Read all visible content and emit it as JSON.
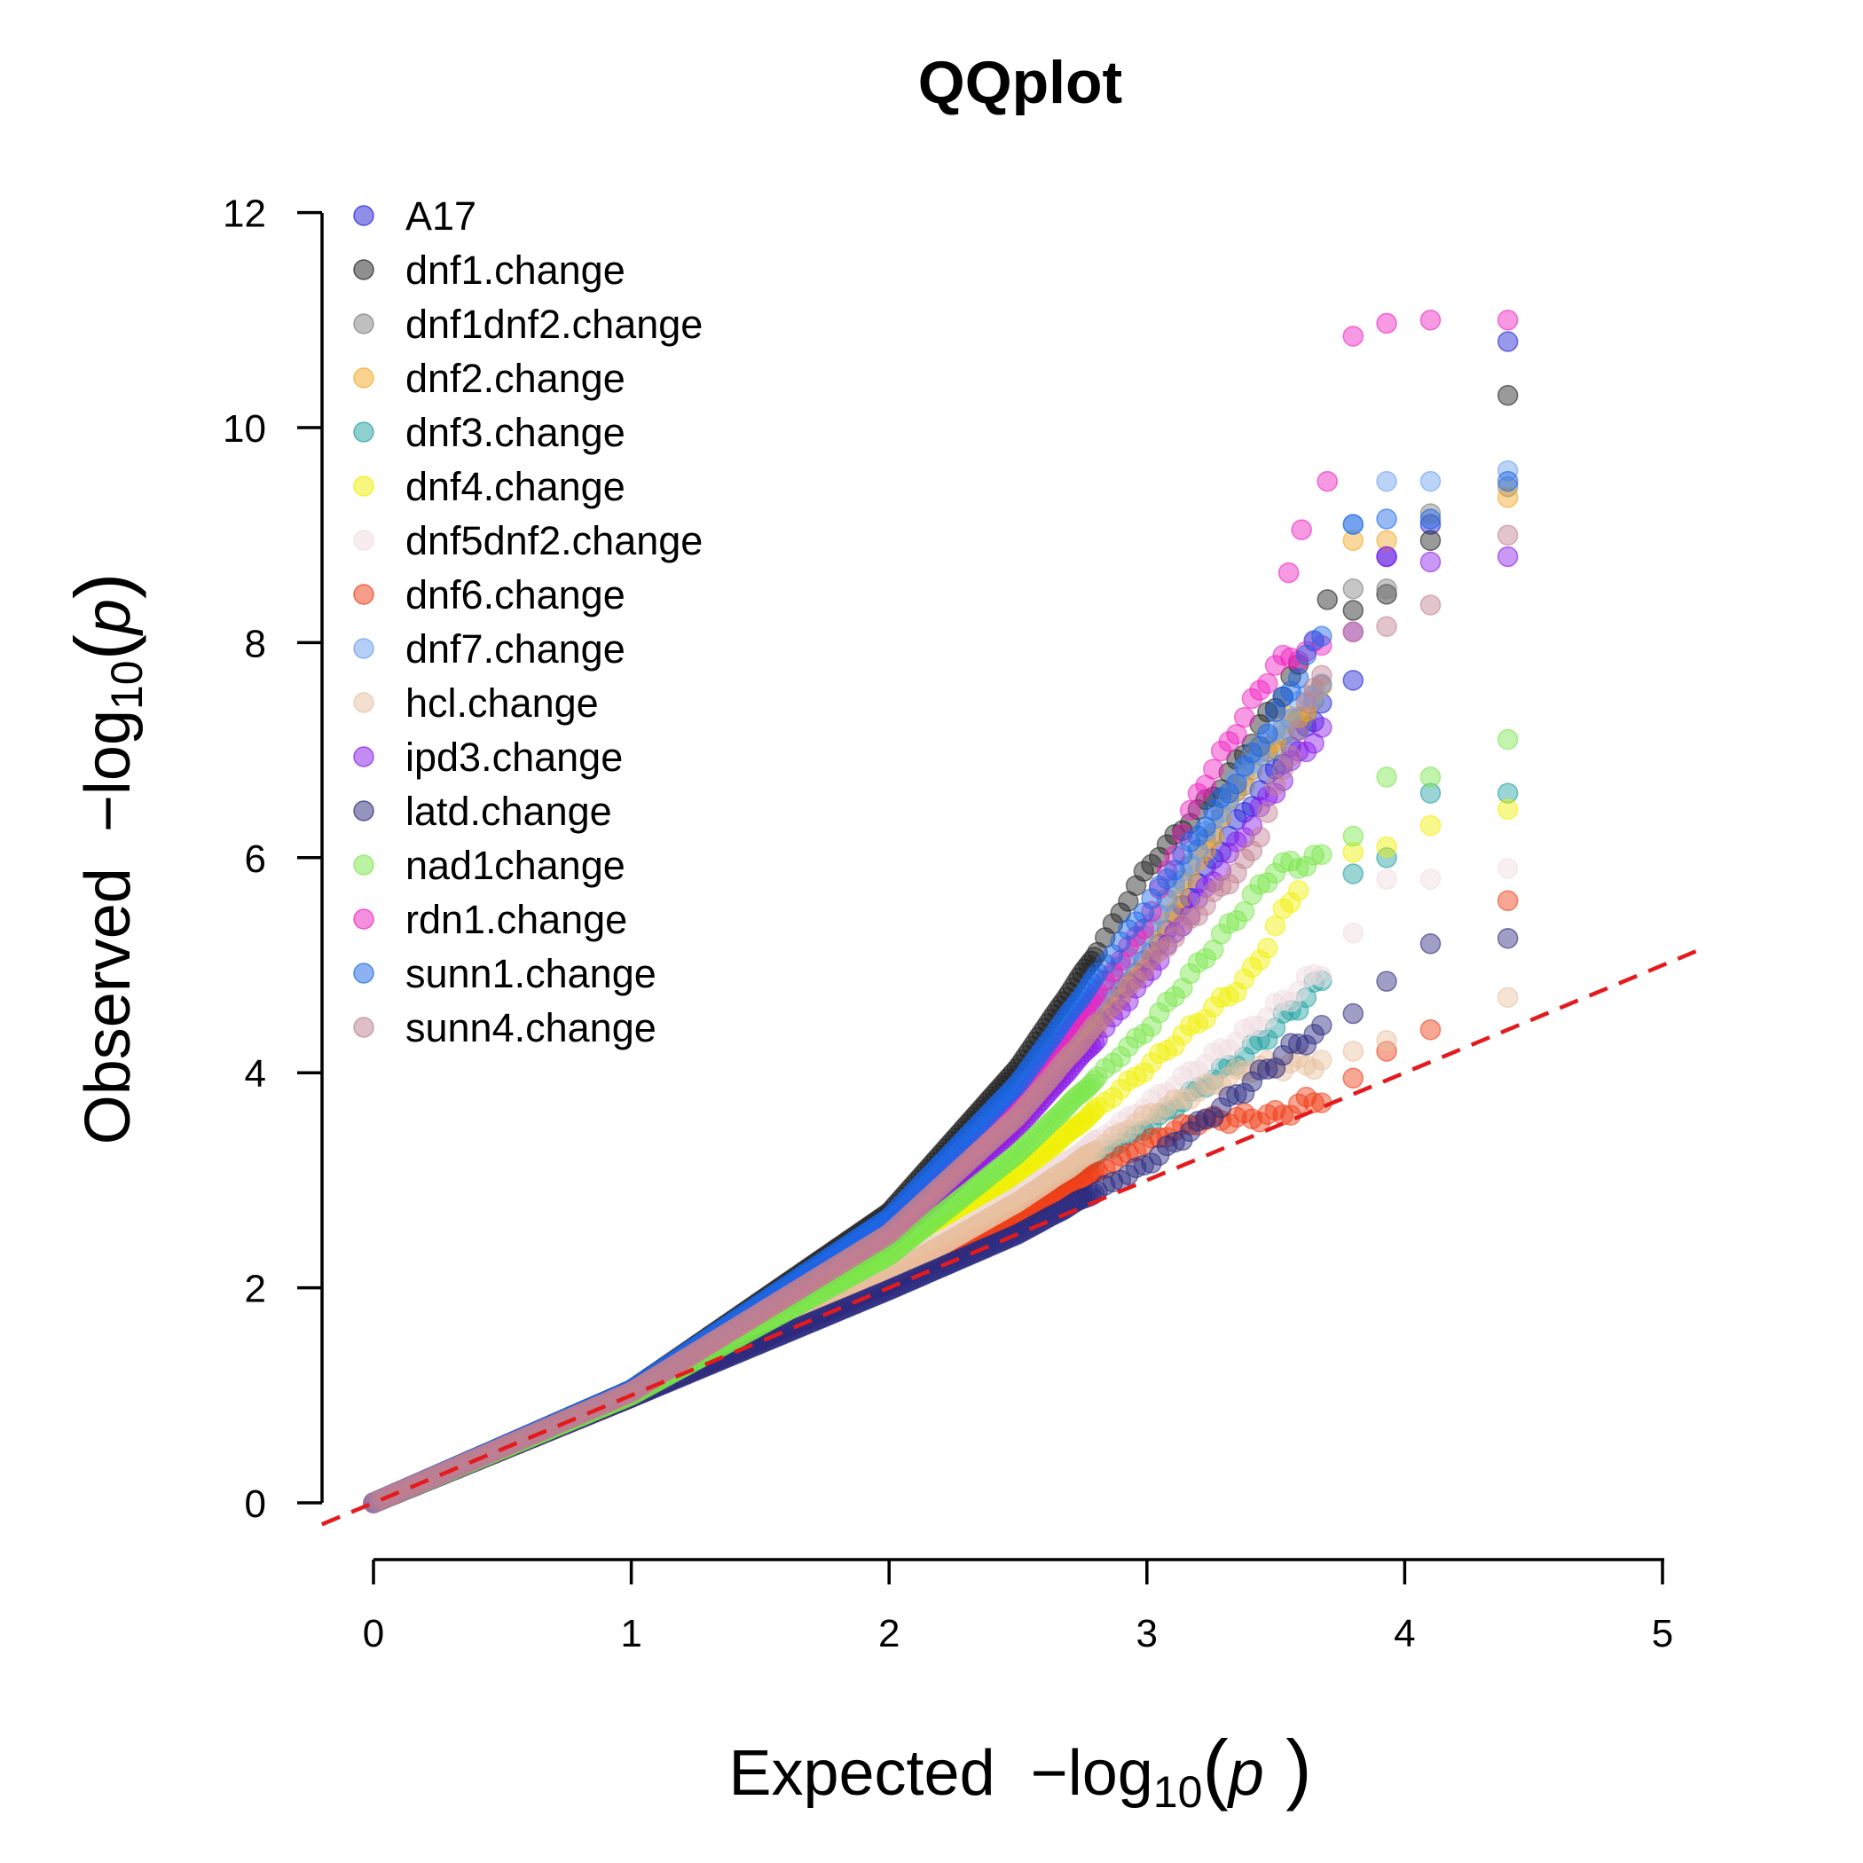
{
  "chart_data": {
    "type": "scatter",
    "title": "QQplot",
    "xlabel": {
      "prefix": "Expected",
      "minus": "−",
      "log": "log",
      "base": "10",
      "arg": "p"
    },
    "ylabel": {
      "prefix": "Observed",
      "minus": "−",
      "log": "log",
      "base": "10",
      "arg": "p"
    },
    "xlim": [
      0,
      5
    ],
    "ylim": [
      0,
      12
    ],
    "x_ticks": [
      "0",
      "1",
      "2",
      "3",
      "4",
      "5"
    ],
    "y_ticks": [
      "0",
      "2",
      "4",
      "6",
      "8",
      "10",
      "12"
    ],
    "reference_line": {
      "type": "y=x",
      "color": "#e41a1c",
      "style": "dashed"
    },
    "legend_position": "top-left",
    "grid": false,
    "series": [
      {
        "name": "A17",
        "color": "#1f1fd6",
        "curve": [
          [
            0,
            0
          ],
          [
            1,
            1.03
          ],
          [
            2,
            2.55
          ],
          [
            2.5,
            3.7
          ],
          [
            3,
            5.05
          ],
          [
            3.4,
            6.5
          ],
          [
            3.7,
            7.5
          ]
        ],
        "tail": [
          [
            3.8,
            7.65
          ],
          [
            3.93,
            8.8
          ],
          [
            4.1,
            9.1
          ],
          [
            4.4,
            10.8
          ]
        ]
      },
      {
        "name": "dnf1.change",
        "color": "#202020",
        "curve": [
          [
            0,
            0
          ],
          [
            1,
            1.05
          ],
          [
            2,
            2.7
          ],
          [
            2.5,
            4.05
          ],
          [
            2.8,
            5.1
          ],
          [
            3,
            5.9
          ],
          [
            3.3,
            6.7
          ],
          [
            3.6,
            7.8
          ]
        ],
        "tail": [
          [
            3.7,
            8.4
          ],
          [
            3.8,
            8.3
          ],
          [
            3.93,
            8.45
          ],
          [
            4.1,
            8.95
          ],
          [
            4.4,
            10.3
          ]
        ]
      },
      {
        "name": "dnf1dnf2.change",
        "color": "#808080",
        "curve": [
          [
            0,
            0
          ],
          [
            1,
            1.04
          ],
          [
            2,
            2.6
          ],
          [
            2.5,
            3.8
          ],
          [
            3,
            5.3
          ],
          [
            3.4,
            6.8
          ],
          [
            3.7,
            7.6
          ]
        ],
        "tail": [
          [
            3.8,
            8.5
          ],
          [
            3.93,
            8.5
          ],
          [
            4.1,
            9.2
          ],
          [
            4.4,
            9.45
          ]
        ]
      },
      {
        "name": "dnf2.change",
        "color": "#f5a623",
        "curve": [
          [
            0,
            0
          ],
          [
            1,
            1.02
          ],
          [
            2,
            2.45
          ],
          [
            2.5,
            3.55
          ],
          [
            3,
            5.0
          ],
          [
            3.4,
            6.9
          ],
          [
            3.7,
            7.6
          ]
        ],
        "tail": [
          [
            3.8,
            8.95
          ],
          [
            3.93,
            8.95
          ],
          [
            4.4,
            9.35
          ]
        ]
      },
      {
        "name": "dnf3.change",
        "color": "#20a0a0",
        "curve": [
          [
            0,
            0
          ],
          [
            1,
            0.98
          ],
          [
            2,
            2.1
          ],
          [
            2.5,
            2.8
          ],
          [
            3,
            3.5
          ],
          [
            3.4,
            4.2
          ],
          [
            3.7,
            4.9
          ]
        ],
        "tail": [
          [
            3.8,
            5.85
          ],
          [
            3.93,
            6.0
          ],
          [
            4.1,
            6.6
          ],
          [
            4.4,
            6.6
          ]
        ]
      },
      {
        "name": "dnf4.change",
        "color": "#f0f000",
        "curve": [
          [
            0,
            0
          ],
          [
            1,
            1.0
          ],
          [
            2,
            2.2
          ],
          [
            2.5,
            3.05
          ],
          [
            3,
            4.05
          ],
          [
            3.4,
            4.9
          ],
          [
            3.6,
            5.8
          ]
        ],
        "tail": [
          [
            3.8,
            6.05
          ],
          [
            3.93,
            6.1
          ],
          [
            4.1,
            6.3
          ],
          [
            4.4,
            6.45
          ]
        ]
      },
      {
        "name": "dnf5dnf2.change",
        "color": "#f0dce0",
        "curve": [
          [
            0,
            0
          ],
          [
            1,
            0.99
          ],
          [
            2,
            2.15
          ],
          [
            2.5,
            2.85
          ],
          [
            3,
            3.7
          ],
          [
            3.4,
            4.4
          ],
          [
            3.7,
            5.0
          ]
        ],
        "tail": [
          [
            3.8,
            5.3
          ],
          [
            3.93,
            5.8
          ],
          [
            4.1,
            5.8
          ],
          [
            4.4,
            5.9
          ]
        ]
      },
      {
        "name": "dnf6.change",
        "color": "#f03c14",
        "curve": [
          [
            0,
            0
          ],
          [
            1,
            0.98
          ],
          [
            2,
            2.05
          ],
          [
            2.5,
            2.65
          ],
          [
            3,
            3.35
          ],
          [
            3.2,
            3.55
          ],
          [
            3.5,
            3.6
          ],
          [
            3.7,
            3.8
          ]
        ],
        "tail": [
          [
            3.8,
            3.95
          ],
          [
            3.93,
            4.2
          ],
          [
            4.1,
            4.4
          ],
          [
            4.4,
            5.6
          ]
        ]
      },
      {
        "name": "dnf7.change",
        "color": "#6a9ef0",
        "curve": [
          [
            0,
            0
          ],
          [
            1,
            1.03
          ],
          [
            2,
            2.55
          ],
          [
            2.5,
            3.75
          ],
          [
            3,
            5.3
          ],
          [
            3.4,
            6.9
          ],
          [
            3.7,
            7.7
          ]
        ],
        "tail": [
          [
            3.8,
            9.1
          ],
          [
            3.93,
            9.5
          ],
          [
            4.1,
            9.5
          ],
          [
            4.4,
            9.6
          ]
        ]
      },
      {
        "name": "hcl.change",
        "color": "#e8c0a0",
        "curve": [
          [
            0,
            0
          ],
          [
            1,
            0.99
          ],
          [
            2,
            2.12
          ],
          [
            2.5,
            2.8
          ],
          [
            3,
            3.6
          ],
          [
            3.4,
            4.05
          ],
          [
            3.7,
            4.1
          ]
        ],
        "tail": [
          [
            3.8,
            4.2
          ],
          [
            3.93,
            4.3
          ],
          [
            4.4,
            4.7
          ]
        ]
      },
      {
        "name": "ipd3.change",
        "color": "#8a1ae8",
        "curve": [
          [
            0,
            0
          ],
          [
            1,
            1.02
          ],
          [
            2,
            2.45
          ],
          [
            2.5,
            3.5
          ],
          [
            2.8,
            4.3
          ],
          [
            3,
            4.9
          ],
          [
            3.3,
            5.95
          ],
          [
            3.6,
            7.0
          ],
          [
            3.7,
            7.2
          ]
        ],
        "tail": [
          [
            3.8,
            8.1
          ],
          [
            3.93,
            8.8
          ],
          [
            4.1,
            8.75
          ],
          [
            4.4,
            8.8
          ]
        ]
      },
      {
        "name": "latd.change",
        "color": "#2a2a80",
        "curve": [
          [
            0,
            0
          ],
          [
            1,
            0.98
          ],
          [
            2,
            1.98
          ],
          [
            2.5,
            2.5
          ],
          [
            3,
            3.15
          ],
          [
            3.3,
            3.7
          ],
          [
            3.6,
            4.3
          ],
          [
            3.7,
            4.4
          ]
        ],
        "tail": [
          [
            3.8,
            4.55
          ],
          [
            3.93,
            4.85
          ],
          [
            4.1,
            5.2
          ],
          [
            4.4,
            5.25
          ]
        ]
      },
      {
        "name": "nad1change",
        "color": "#7ae64a",
        "curve": [
          [
            0,
            0
          ],
          [
            1,
            1.0
          ],
          [
            2,
            2.3
          ],
          [
            2.5,
            3.25
          ],
          [
            3,
            4.4
          ],
          [
            3.2,
            5.0
          ],
          [
            3.5,
            5.9
          ],
          [
            3.7,
            6.0
          ]
        ],
        "tail": [
          [
            3.8,
            6.2
          ],
          [
            3.93,
            6.75
          ],
          [
            4.1,
            6.75
          ],
          [
            4.4,
            7.1
          ]
        ]
      },
      {
        "name": "rdn1.change",
        "color": "#f020c0",
        "curve": [
          [
            0,
            0
          ],
          [
            1,
            1.04
          ],
          [
            2,
            2.55
          ],
          [
            2.5,
            3.7
          ],
          [
            3,
            5.4
          ],
          [
            3.2,
            6.6
          ],
          [
            3.5,
            7.8
          ],
          [
            3.7,
            8.0
          ]
        ],
        "tail": [
          [
            3.55,
            8.65
          ],
          [
            3.6,
            9.05
          ],
          [
            3.7,
            9.5
          ],
          [
            3.8,
            10.85
          ],
          [
            3.93,
            10.97
          ],
          [
            4.1,
            11.0
          ],
          [
            4.4,
            11.0
          ]
        ]
      },
      {
        "name": "sunn1.change",
        "color": "#1a66e6",
        "curve": [
          [
            0,
            0
          ],
          [
            1,
            1.05
          ],
          [
            2,
            2.65
          ],
          [
            2.5,
            3.9
          ],
          [
            3,
            5.55
          ],
          [
            3.4,
            6.9
          ],
          [
            3.7,
            8.2
          ]
        ],
        "tail": [
          [
            3.8,
            9.1
          ],
          [
            3.93,
            9.15
          ],
          [
            4.1,
            9.15
          ],
          [
            4.4,
            9.5
          ]
        ]
      },
      {
        "name": "sunn4.change",
        "color": "#c08090",
        "curve": [
          [
            0,
            0
          ],
          [
            1,
            1.03
          ],
          [
            2,
            2.5
          ],
          [
            2.5,
            3.6
          ],
          [
            3,
            5.0
          ],
          [
            3.4,
            6.0
          ],
          [
            3.7,
            7.9
          ]
        ],
        "tail": [
          [
            3.8,
            8.1
          ],
          [
            3.93,
            8.15
          ],
          [
            4.1,
            8.35
          ],
          [
            4.4,
            9.0
          ]
        ]
      }
    ]
  }
}
